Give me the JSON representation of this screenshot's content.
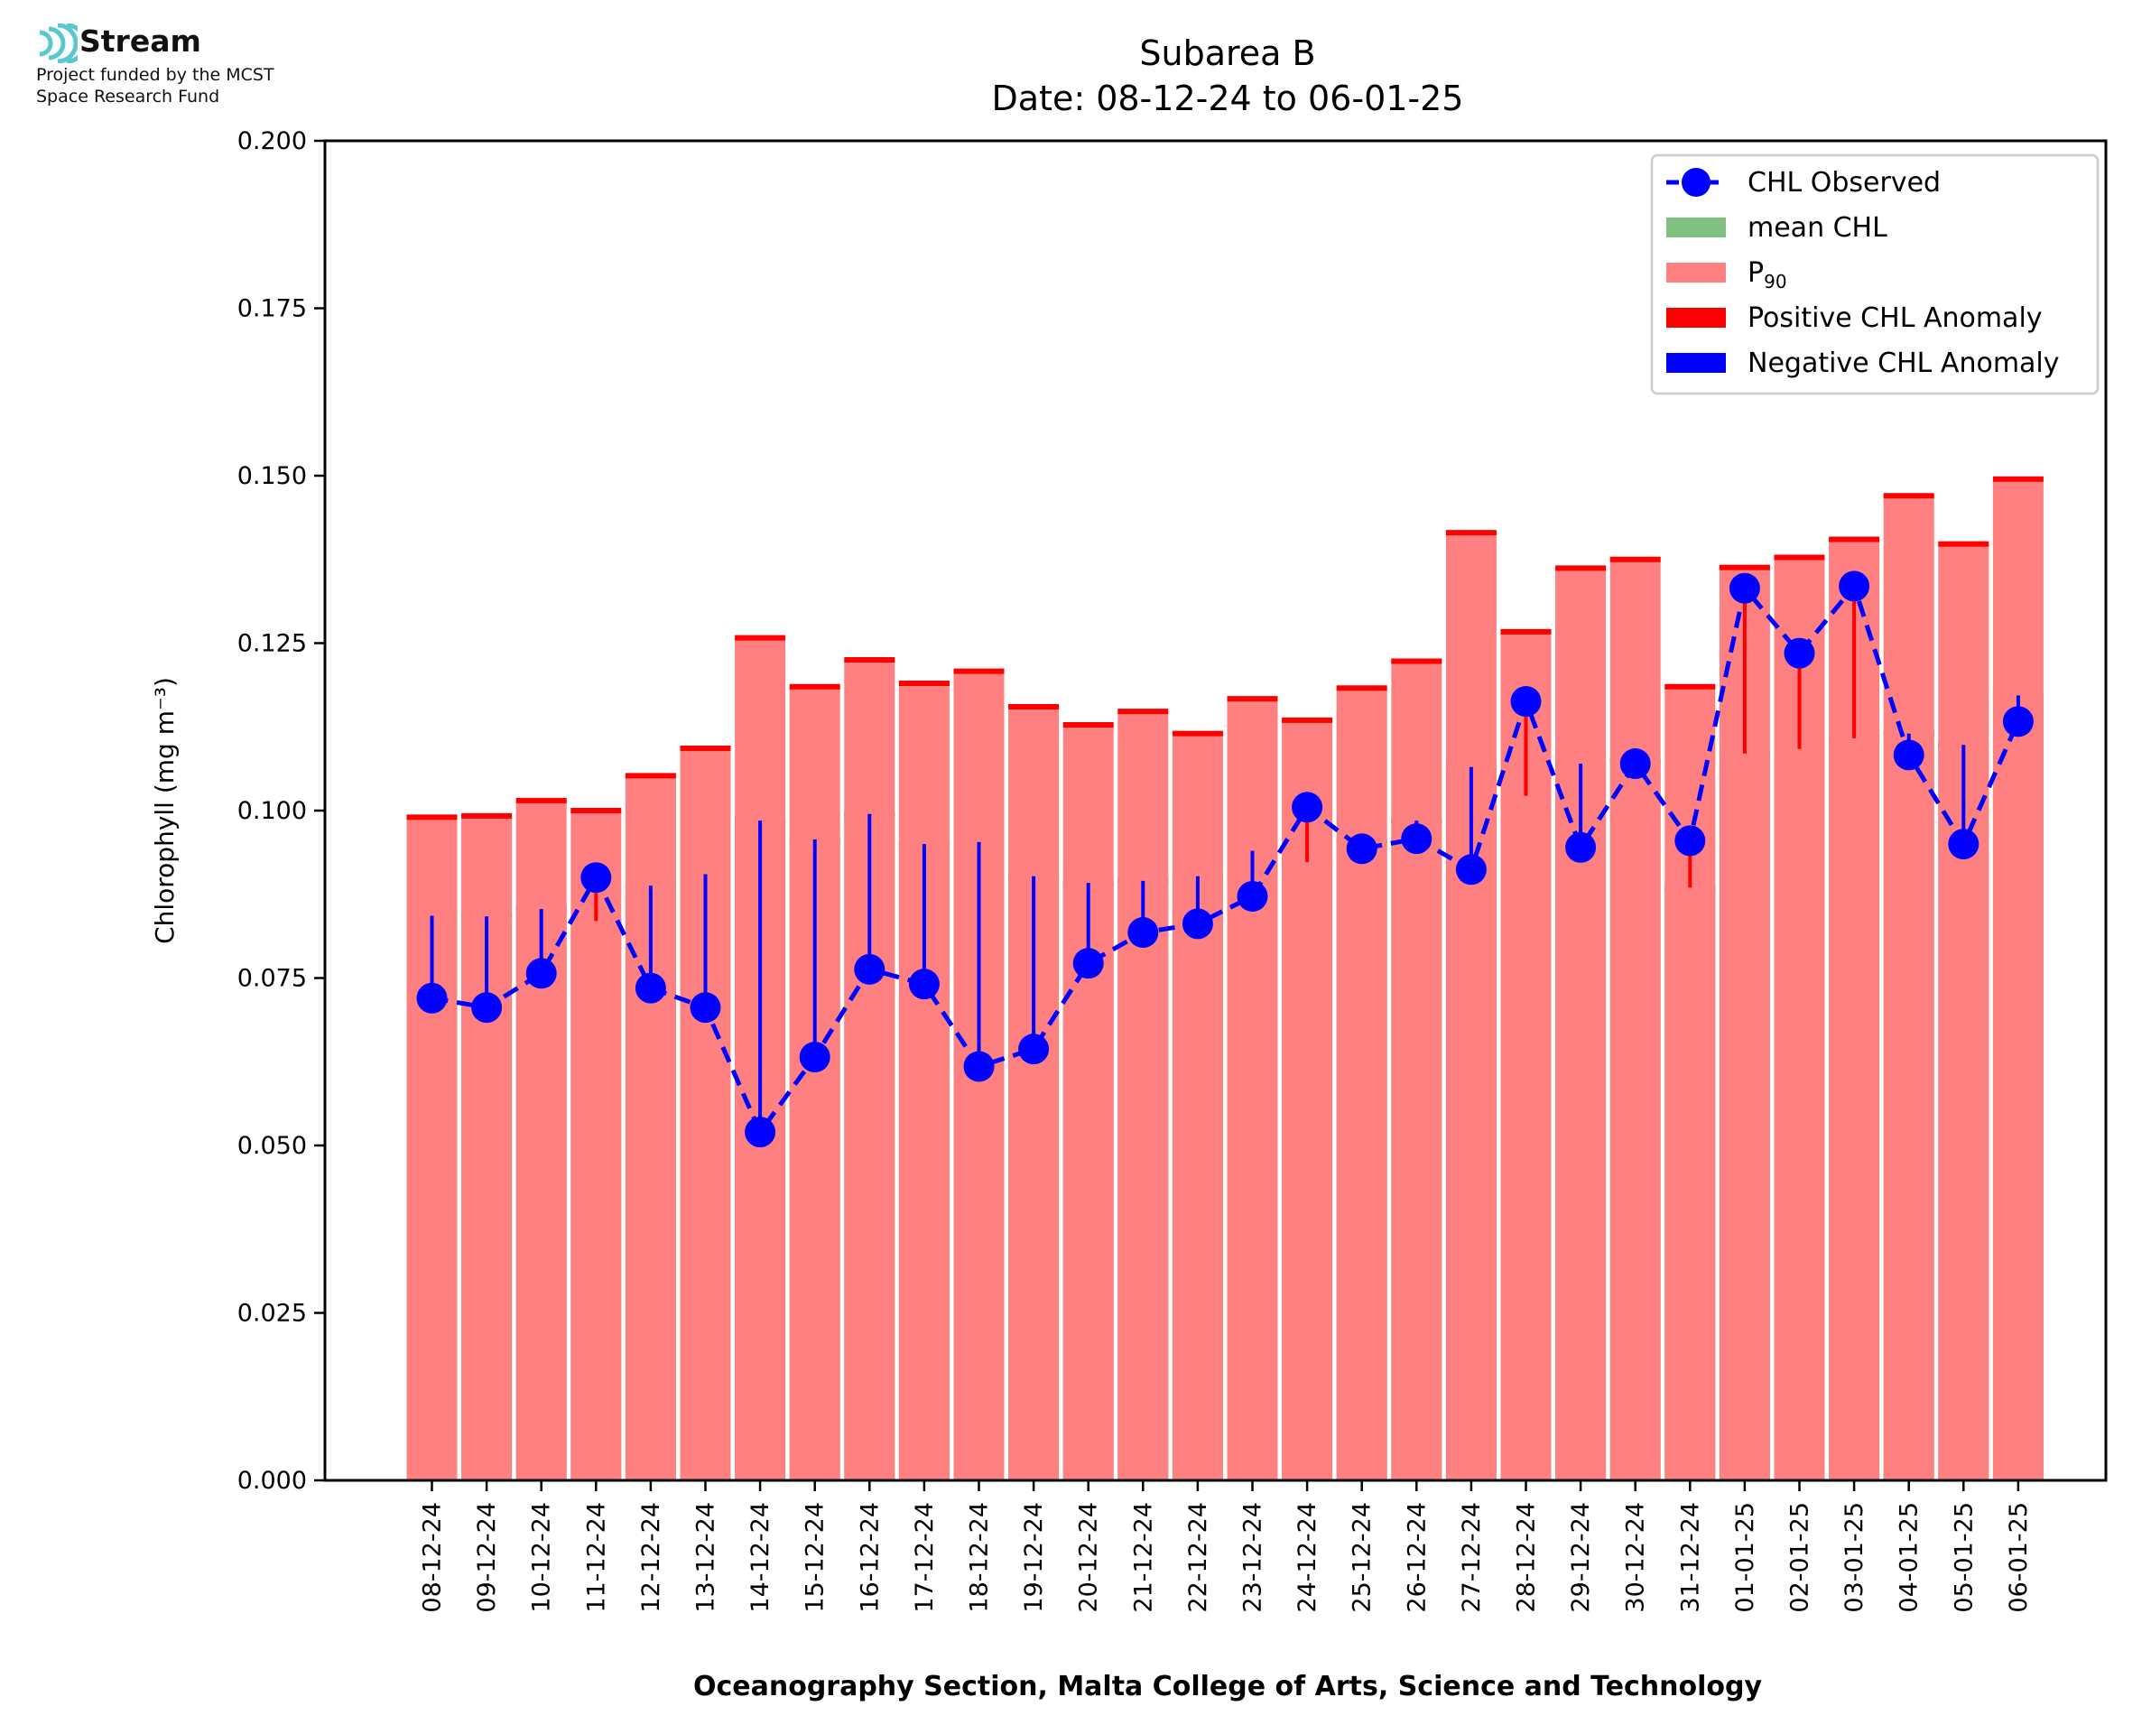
{
  "logo": {
    "name": "Stream",
    "line1": "Project funded by the MCST",
    "line2": "Space Research Fund",
    "accent_color": "#5bc8d0",
    "icon": "stream-waves-icon"
  },
  "chart_data": {
    "type": "bar",
    "title": "Subarea B",
    "subtitle": "Date: 08-12-24 to 06-01-25",
    "xlabel": "Oceanography Section, Malta College of Arts, Science and Technology",
    "ylabel": "Chlorophyll (mg m⁻³)",
    "ylim": [
      0,
      0.2
    ],
    "yticks": [
      "0.000",
      "0.025",
      "0.050",
      "0.075",
      "0.100",
      "0.125",
      "0.150",
      "0.175",
      "0.200"
    ],
    "grid": false,
    "legend_position": "top-right",
    "categories": [
      "08-12-24",
      "09-12-24",
      "10-12-24",
      "11-12-24",
      "12-12-24",
      "13-12-24",
      "14-12-24",
      "15-12-24",
      "16-12-24",
      "17-12-24",
      "18-12-24",
      "19-12-24",
      "20-12-24",
      "21-12-24",
      "22-12-24",
      "23-12-24",
      "24-12-24",
      "25-12-24",
      "26-12-24",
      "27-12-24",
      "28-12-24",
      "29-12-24",
      "30-12-24",
      "31-12-24",
      "01-01-25",
      "02-01-25",
      "03-01-25",
      "04-01-25",
      "05-01-25",
      "06-01-25"
    ],
    "series": [
      {
        "name": "mean CHL",
        "color": "#80c080",
        "edge_color": "#1a7a1a",
        "values": [
          0.0843,
          0.0842,
          0.0853,
          0.0835,
          0.0888,
          0.0905,
          0.0985,
          0.0957,
          0.0995,
          0.095,
          0.0953,
          0.0902,
          0.0892,
          0.0895,
          0.0902,
          0.094,
          0.0923,
          0.0955,
          0.0985,
          0.1065,
          0.1022,
          0.107,
          0.1075,
          0.0885,
          0.1085,
          0.1092,
          0.1108,
          0.1115,
          0.1098,
          0.1172
        ]
      },
      {
        "name": "P90",
        "color": "#ff8080",
        "edge_color": "#ff0000",
        "values": [
          0.099,
          0.0992,
          0.1015,
          0.1,
          0.1052,
          0.1093,
          0.1258,
          0.1185,
          0.1225,
          0.119,
          0.1208,
          0.1155,
          0.1128,
          0.1148,
          0.1115,
          0.1167,
          0.1135,
          0.1183,
          0.1223,
          0.1415,
          0.1267,
          0.1362,
          0.1375,
          0.1185,
          0.1363,
          0.1378,
          0.1405,
          0.147,
          0.1398,
          0.1495
        ]
      },
      {
        "name": "CHL Observed",
        "color": "#0000ff",
        "values": [
          0.072,
          0.0706,
          0.0757,
          0.09,
          0.0735,
          0.0706,
          0.052,
          0.0632,
          0.0763,
          0.0741,
          0.0618,
          0.0644,
          0.0772,
          0.0818,
          0.0831,
          0.0872,
          0.1005,
          0.0943,
          0.0958,
          0.0912,
          0.1163,
          0.0945,
          0.107,
          0.0955,
          0.1332,
          0.1235,
          0.1335,
          0.1083,
          0.095,
          0.1133
        ]
      }
    ],
    "legend": [
      {
        "label": "CHL Observed",
        "kind": "line-marker",
        "color": "#0000ff"
      },
      {
        "label": "mean CHL",
        "kind": "patch",
        "color": "#80c080"
      },
      {
        "label": "P",
        "sub": "90",
        "kind": "patch",
        "color": "#ff8080"
      },
      {
        "label": "Positive CHL Anomaly",
        "kind": "patch",
        "color": "#ff0000"
      },
      {
        "label": "Negative CHL Anomaly",
        "kind": "patch",
        "color": "#0000ff"
      }
    ]
  }
}
